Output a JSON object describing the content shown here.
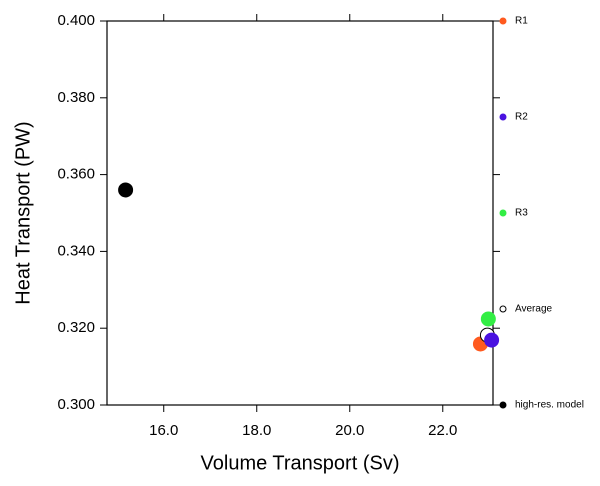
{
  "chart_data": {
    "type": "scatter",
    "x_label": "Volume Transport (Sv)",
    "y_label": "Heat Transport (PW)",
    "xlim": [
      14.78,
      23.08
    ],
    "ylim": [
      0.3,
      0.4
    ],
    "xticks": [
      {
        "value": 16,
        "label": "16.0"
      },
      {
        "value": 18,
        "label": "18.0"
      },
      {
        "value": 20,
        "label": "20.0"
      },
      {
        "value": 22,
        "label": "22.0"
      }
    ],
    "yticks": [
      {
        "value": 0.3,
        "label": "0.300"
      },
      {
        "value": 0.32,
        "label": "0.320"
      },
      {
        "value": 0.34,
        "label": "0.340"
      },
      {
        "value": 0.36,
        "label": "0.360"
      },
      {
        "value": 0.38,
        "label": "0.380"
      },
      {
        "value": 0.4,
        "label": "0.400"
      }
    ],
    "series": [
      {
        "name": "R1",
        "color": "#ff5a1f",
        "x": [
          22.81
        ],
        "values": [
          0.3159
        ]
      },
      {
        "name": "R2",
        "color": "#4a12e0",
        "x": [
          23.05
        ],
        "values": [
          0.3169
        ]
      },
      {
        "name": "R3",
        "color": "#33ee44",
        "x": [
          22.98
        ],
        "values": [
          0.3224
        ]
      },
      {
        "name": "Average",
        "color": "#ffffff",
        "x": [
          22.96
        ],
        "values": [
          0.3182
        ]
      },
      {
        "name": "high-res. model",
        "color": "#000000",
        "x": [
          15.18
        ],
        "values": [
          0.356
        ]
      }
    ]
  }
}
